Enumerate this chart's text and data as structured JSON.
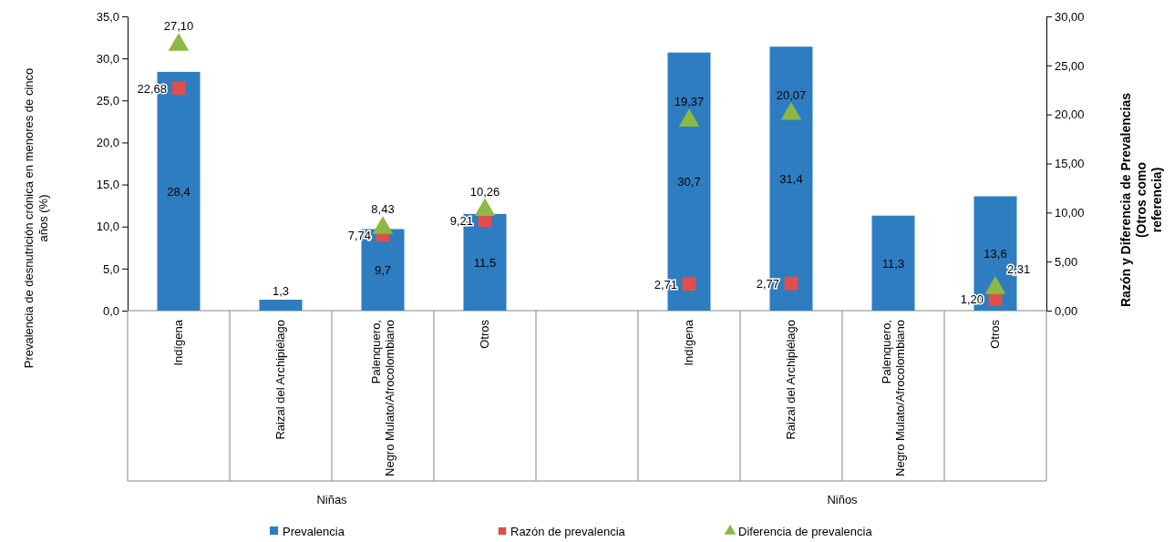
{
  "chart_data": {
    "type": "bar",
    "categories": [
      "Indígena",
      "Raizal del Archipiélago",
      "Palenquero, Negro Mulato/Afrocolombiano",
      "Otros",
      null,
      "Indígena",
      "Raizal del Archipiélago",
      "Palenquero, Negro Mulato/Afrocolombiano",
      "Otros"
    ],
    "ylabel": "Prevalencia de desnutrición crónica en menores de cinco años (%)",
    "y2label": "Razón y Diferencia de Prevalencias (Otros como referencia)",
    "ylim": [
      0,
      35
    ],
    "yticks": [
      {
        "value": 0,
        "label": "0,0"
      },
      {
        "value": 5,
        "label": "5,0"
      },
      {
        "value": 10,
        "label": "10,0"
      },
      {
        "value": 15,
        "label": "15,0"
      },
      {
        "value": 20,
        "label": "20,0"
      },
      {
        "value": 25,
        "label": "25,0"
      },
      {
        "value": 30,
        "label": "30,0"
      },
      {
        "value": 35,
        "label": "35,0"
      }
    ],
    "y2lim": [
      0,
      30
    ],
    "y2ticks": [
      {
        "value": 0,
        "label": "0,00"
      },
      {
        "value": 5,
        "label": "5,00"
      },
      {
        "value": 10,
        "label": "10,00"
      },
      {
        "value": 15,
        "label": "15,00"
      },
      {
        "value": 20,
        "label": "20,00"
      },
      {
        "value": 25,
        "label": "25,00"
      },
      {
        "value": 30,
        "label": "30,00"
      }
    ],
    "series": [
      {
        "name": "Prevalencia",
        "color": "#2e7dc0",
        "values": [
          28.4,
          1.3,
          9.7,
          11.5,
          null,
          30.7,
          31.4,
          11.3,
          13.6
        ],
        "value_labels": [
          "28,4",
          "1,3",
          "9,7",
          "11,5",
          null,
          "30,7",
          "31,4",
          "11,3",
          "13,6"
        ]
      },
      {
        "name": "Razón de prevalencia",
        "type": "scatter",
        "axis": "y2",
        "marker": "square",
        "color": "#e0504a",
        "values": [
          22.68,
          null,
          7.74,
          9.21,
          null,
          2.71,
          2.77,
          null,
          1.2
        ],
        "value_labels": [
          "22,68",
          null,
          "7,74",
          "9,21",
          null,
          "2,71",
          "2,77",
          null,
          "1,20"
        ]
      },
      {
        "name": "Diferencia de prevalencia",
        "type": "scatter",
        "axis": "y2",
        "marker": "triangle",
        "color": "#8db843",
        "values": [
          27.1,
          null,
          8.43,
          10.26,
          null,
          19.37,
          20.07,
          null,
          2.31
        ],
        "value_labels": [
          "27,10",
          null,
          "8,43",
          "10,26",
          null,
          "19,37",
          "20,07",
          null,
          "2,31"
        ]
      }
    ],
    "annotations": [
      "Niñas",
      "Niños"
    ],
    "legend": "bottom",
    "grid": false
  }
}
